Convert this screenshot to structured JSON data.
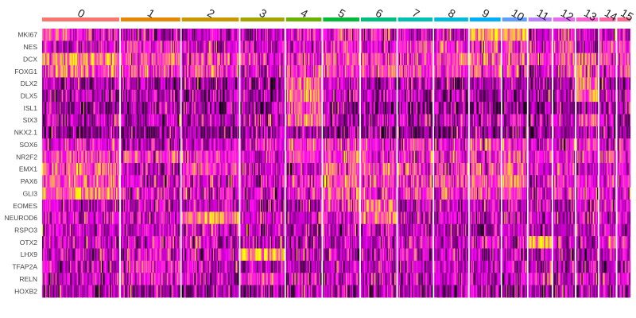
{
  "chart_data": {
    "type": "heatmap",
    "title": "",
    "xlabel": "",
    "ylabel": "",
    "genes": [
      "MKI67",
      "NES",
      "DCX",
      "FOXG1",
      "DLX2",
      "DLX5",
      "ISL1",
      "SIX3",
      "NKX2.1",
      "SOX6",
      "NR2F2",
      "EMX1",
      "PAX6",
      "GLI3",
      "EOMES",
      "NEUROD6",
      "RSPO3",
      "OTX2",
      "LHX9",
      "TFAP2A",
      "RELN",
      "HOXB2"
    ],
    "clusters": [
      {
        "label": "0",
        "color": "#F8766D",
        "relative_size": 100
      },
      {
        "label": "1",
        "color": "#E58700",
        "relative_size": 77
      },
      {
        "label": "2",
        "color": "#C99800",
        "relative_size": 74
      },
      {
        "label": "3",
        "color": "#A3A500",
        "relative_size": 57
      },
      {
        "label": "4",
        "color": "#6BB100",
        "relative_size": 46
      },
      {
        "label": "5",
        "color": "#00BA38",
        "relative_size": 47
      },
      {
        "label": "6",
        "color": "#00BF7D",
        "relative_size": 46
      },
      {
        "label": "7",
        "color": "#00C0AF",
        "relative_size": 45
      },
      {
        "label": "8",
        "color": "#00BCD8",
        "relative_size": 44
      },
      {
        "label": "9",
        "color": "#00B0F6",
        "relative_size": 40
      },
      {
        "label": "10",
        "color": "#619CFF",
        "relative_size": 32
      },
      {
        "label": "11",
        "color": "#B983FF",
        "relative_size": 30
      },
      {
        "label": "12",
        "color": "#E76BF3",
        "relative_size": 28
      },
      {
        "label": "13",
        "color": "#FD61D1",
        "relative_size": 28
      },
      {
        "label": "14",
        "color": "#FF67A4",
        "relative_size": 21
      },
      {
        "label": "15",
        "color": "#FF6C90",
        "relative_size": 17
      }
    ],
    "color_scale": {
      "low": "#000000",
      "mid": "#FF00FF",
      "high": "#FFFF00",
      "min": -2.5,
      "max": 2.5
    },
    "mean_expression": [
      [
        0.3,
        -0.2,
        1.5,
        0.9,
        -0.8,
        -0.7,
        -1.0,
        -0.6,
        -1.0,
        0.2,
        0.6,
        0.8,
        0.9,
        1.2,
        -0.5,
        -0.2,
        -0.4,
        -0.5,
        -0.5,
        -0.6,
        -0.4,
        -0.8
      ],
      [
        -0.6,
        0.2,
        0.5,
        0.6,
        -0.8,
        -0.7,
        -1.0,
        -0.6,
        -1.0,
        -0.2,
        0.4,
        -0.3,
        -0.4,
        -0.2,
        -0.5,
        -0.4,
        -0.5,
        -0.5,
        -0.5,
        0.3,
        0.1,
        -0.8
      ],
      [
        -0.6,
        -0.3,
        0.3,
        0.6,
        -0.8,
        -0.7,
        -1.0,
        -0.6,
        -1.0,
        -0.3,
        0.2,
        0.6,
        -0.3,
        -0.2,
        -0.4,
        1.6,
        -0.4,
        -0.5,
        -0.5,
        -0.5,
        -0.4,
        -0.8
      ],
      [
        -0.5,
        -0.3,
        0.2,
        -0.4,
        -0.8,
        -0.7,
        -1.0,
        -0.6,
        -1.0,
        -0.3,
        -0.3,
        -0.4,
        -0.4,
        -0.4,
        -0.5,
        -0.3,
        -0.5,
        -0.4,
        1.8,
        -0.5,
        0.3,
        -0.8
      ],
      [
        -0.2,
        -0.1,
        0.4,
        0.5,
        1.0,
        1.4,
        0.6,
        1.1,
        -0.8,
        0.4,
        0.5,
        -0.3,
        0.1,
        0.2,
        -0.5,
        -0.4,
        -0.5,
        -0.5,
        -0.5,
        -0.5,
        -0.4,
        -0.8
      ],
      [
        0.2,
        0.1,
        0.6,
        0.7,
        -0.6,
        -0.6,
        -1.0,
        -0.5,
        -1.0,
        0.2,
        0.5,
        0.7,
        0.8,
        0.6,
        0.6,
        -0.2,
        -0.5,
        -0.5,
        -0.5,
        -0.6,
        -0.4,
        -0.8
      ],
      [
        -0.2,
        0.0,
        0.5,
        0.6,
        -0.8,
        -0.7,
        -1.0,
        -0.6,
        -1.0,
        0.1,
        0.4,
        0.6,
        0.5,
        0.4,
        1.2,
        1.0,
        -0.5,
        -0.5,
        -0.5,
        -0.6,
        -0.4,
        -0.8
      ],
      [
        -0.2,
        0.5,
        0.4,
        0.4,
        -0.8,
        -0.7,
        -1.0,
        -0.6,
        -1.0,
        0.2,
        0.3,
        0.3,
        0.3,
        0.5,
        -0.5,
        -0.4,
        -0.5,
        -0.5,
        -0.5,
        -0.6,
        -0.4,
        -0.8
      ],
      [
        -0.3,
        0.3,
        0.6,
        0.3,
        -0.8,
        -0.7,
        -1.0,
        -0.6,
        -1.0,
        0.1,
        0.3,
        0.2,
        0.4,
        0.3,
        -0.5,
        -0.4,
        -0.5,
        -0.4,
        -0.5,
        -0.6,
        -0.4,
        -0.8
      ],
      [
        1.6,
        0.4,
        0.9,
        0.6,
        -0.7,
        -0.7,
        -1.0,
        -0.6,
        -1.0,
        0.2,
        0.3,
        0.4,
        0.5,
        0.4,
        -0.4,
        -0.4,
        -0.5,
        0.1,
        -0.5,
        -0.6,
        -0.4,
        -0.8
      ],
      [
        2.0,
        0.4,
        0.6,
        0.6,
        -0.7,
        -0.7,
        -1.0,
        -0.6,
        -1.0,
        0.3,
        0.5,
        0.8,
        0.8,
        0.6,
        -0.4,
        -0.4,
        -0.5,
        -0.4,
        -0.5,
        -0.6,
        -0.4,
        -0.8
      ],
      [
        -0.5,
        -0.3,
        0.4,
        -0.4,
        -0.8,
        -0.7,
        -1.0,
        -0.6,
        -1.0,
        -0.2,
        0.1,
        -0.3,
        -0.3,
        -0.3,
        -0.5,
        -0.4,
        -0.5,
        2.0,
        -0.4,
        -0.6,
        0.2,
        -0.8
      ],
      [
        0.3,
        0.6,
        0.6,
        0.2,
        -0.8,
        -0.7,
        -1.0,
        -0.6,
        -1.0,
        0.1,
        0.2,
        0.1,
        0.2,
        0.3,
        -0.5,
        -0.4,
        -0.5,
        -0.4,
        -0.5,
        -0.6,
        -0.4,
        -0.8
      ],
      [
        -0.3,
        -0.2,
        0.6,
        0.8,
        0.8,
        1.2,
        -0.8,
        0.4,
        -0.8,
        0.4,
        0.3,
        -0.3,
        -0.2,
        0.0,
        -0.5,
        -0.4,
        -0.5,
        -0.4,
        -0.5,
        -0.6,
        -0.4,
        -0.8
      ],
      [
        -0.3,
        -0.1,
        0.2,
        0.0,
        -0.8,
        -0.7,
        -1.0,
        -0.6,
        -1.0,
        -0.1,
        0.4,
        -0.1,
        -0.1,
        0.1,
        -0.5,
        -0.4,
        -0.5,
        0.3,
        -0.5,
        -0.6,
        -0.4,
        -0.8
      ],
      [
        -0.1,
        0.1,
        0.3,
        0.1,
        -0.6,
        -0.7,
        -1.0,
        -0.6,
        -1.0,
        0.3,
        0.1,
        -0.2,
        -0.1,
        0.1,
        -0.5,
        -0.4,
        -0.5,
        -0.3,
        -0.5,
        -0.6,
        -0.4,
        -0.8
      ]
    ]
  }
}
